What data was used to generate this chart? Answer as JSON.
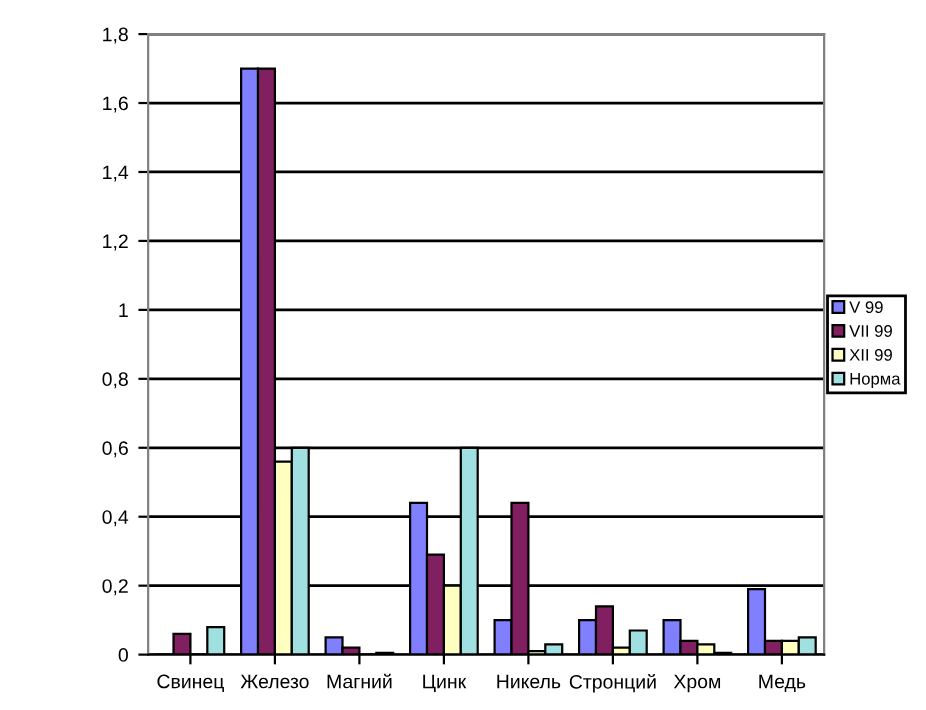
{
  "chart_data": {
    "type": "bar",
    "categories": [
      "Свинец",
      "Железо",
      "Магний",
      "Цинк",
      "Никель",
      "Стронций",
      "Хром",
      "Медь"
    ],
    "series": [
      {
        "name": "V 99",
        "color": "#8080ff",
        "values": [
          0,
          1.7,
          0.05,
          0.44,
          0.1,
          0.1,
          0.1,
          0.19
        ]
      },
      {
        "name": "VII 99",
        "color": "#802060",
        "values": [
          0.06,
          1.7,
          0.02,
          0.29,
          0.44,
          0.14,
          0.04,
          0.04
        ]
      },
      {
        "name": "XII 99",
        "color": "#ffffc0",
        "values": [
          0,
          0.56,
          0,
          0.2,
          0.01,
          0.02,
          0.03,
          0.04
        ]
      },
      {
        "name": "Норма",
        "color": "#a0e0e0",
        "values": [
          0.08,
          0.6,
          0.005,
          0.6,
          0.03,
          0.07,
          0.005,
          0.05
        ]
      }
    ],
    "ylim": [
      0,
      1.8
    ],
    "yticks": [
      0,
      {
        "value": 0.2,
        "label": "0,2"
      },
      {
        "value": 0.4,
        "label": "0,4"
      },
      {
        "value": 0.6,
        "label": "0,6"
      },
      {
        "value": 0.8,
        "label": "0,8"
      },
      1,
      {
        "value": 1.2,
        "label": "1,2"
      },
      {
        "value": 1.4,
        "label": "1,4"
      },
      {
        "value": 1.6,
        "label": "1,6"
      },
      {
        "value": 1.8,
        "label": "1,8"
      }
    ],
    "grid": "y",
    "legend": "right"
  }
}
